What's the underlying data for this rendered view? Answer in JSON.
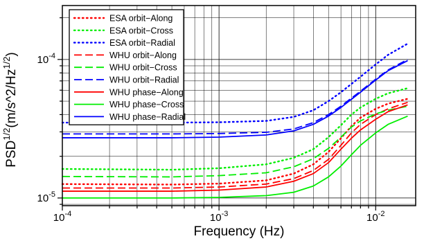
{
  "chart_data": {
    "type": "line",
    "xlabel": "Frequency (Hz)",
    "ylabel": "PSD^{1/2}(m/s^2/Hz^{1/2})",
    "x_scale": "log",
    "y_scale": "log",
    "xlim": [
      0.0001,
      0.018
    ],
    "ylim": [
      8.8e-06,
      0.000245
    ],
    "grid": true,
    "legend_position": "top-left",
    "x_ticks": [
      {
        "value": 0.0001,
        "base": "10",
        "exp": "-4"
      },
      {
        "value": 0.001,
        "base": "10",
        "exp": "-3"
      },
      {
        "value": 0.01,
        "base": "10",
        "exp": "-2"
      }
    ],
    "y_ticks": [
      {
        "value": 1e-05,
        "base": "10",
        "exp": "-5"
      },
      {
        "value": 0.0001,
        "base": "10",
        "exp": "-4"
      }
    ],
    "series": [
      {
        "name": "ESA orbit−Along",
        "color": "#ff0000",
        "style": "dotted",
        "x": [
          0.0001,
          0.0005,
          0.001,
          0.002,
          0.003,
          0.004,
          0.005,
          0.006,
          0.007,
          0.008,
          0.01,
          0.012,
          0.016
        ],
        "y": [
          1.26e-05,
          1.25e-05,
          1.27e-05,
          1.34e-05,
          1.5e-05,
          1.75e-05,
          2.15e-05,
          2.7e-05,
          3.3e-05,
          3.8e-05,
          4.4e-05,
          4.8e-05,
          5.2e-05
        ]
      },
      {
        "name": "ESA orbit−Cross",
        "color": "#00ee00",
        "style": "dotted",
        "x": [
          0.0001,
          0.0005,
          0.001,
          0.002,
          0.003,
          0.004,
          0.005,
          0.006,
          0.007,
          0.008,
          0.01,
          0.012,
          0.016
        ],
        "y": [
          1.62e-05,
          1.6e-05,
          1.64e-05,
          1.75e-05,
          1.95e-05,
          2.25e-05,
          2.75e-05,
          3.35e-05,
          4e-05,
          4.5e-05,
          5.2e-05,
          5.7e-05,
          6.2e-05
        ]
      },
      {
        "name": "ESA orbit−Radial",
        "color": "#0000ff",
        "style": "dotted",
        "x": [
          0.0001,
          0.0005,
          0.001,
          0.002,
          0.003,
          0.004,
          0.005,
          0.006,
          0.008,
          0.01,
          0.012,
          0.016
        ],
        "y": [
          3.5e-05,
          3.5e-05,
          3.52e-05,
          3.6e-05,
          3.85e-05,
          4.3e-05,
          5e-05,
          5.8e-05,
          7.5e-05,
          9.2e-05,
          0.000108,
          0.00013
        ]
      },
      {
        "name": "WHU orbit−Along",
        "color": "#ff0000",
        "style": "dashed",
        "x": [
          0.0001,
          0.0005,
          0.001,
          0.002,
          0.003,
          0.004,
          0.005,
          0.006,
          0.007,
          0.008,
          0.01,
          0.012,
          0.016
        ],
        "y": [
          1.18e-05,
          1.18e-05,
          1.2e-05,
          1.26e-05,
          1.38e-05,
          1.58e-05,
          1.9e-05,
          2.4e-05,
          2.95e-05,
          3.4e-05,
          4e-05,
          4.4e-05,
          4.9e-05
        ]
      },
      {
        "name": "WHU orbit−Cross",
        "color": "#00ee00",
        "style": "dashed",
        "x": [
          0.0001,
          0.0005,
          0.001,
          0.002,
          0.003,
          0.004,
          0.005,
          0.006,
          0.007,
          0.008,
          0.01,
          0.012,
          0.016
        ],
        "y": [
          1.43e-05,
          1.42e-05,
          1.45e-05,
          1.52e-05,
          1.68e-05,
          1.92e-05,
          2.28e-05,
          2.75e-05,
          3.25e-05,
          3.6e-05,
          4.05e-05,
          4.3e-05,
          4.6e-05
        ]
      },
      {
        "name": "WHU orbit−Radial",
        "color": "#0000ff",
        "style": "dashed",
        "x": [
          0.0001,
          0.0005,
          0.001,
          0.002,
          0.003,
          0.004,
          0.005,
          0.006,
          0.008,
          0.01,
          0.012,
          0.016
        ],
        "y": [
          2.9e-05,
          2.9e-05,
          2.92e-05,
          2.98e-05,
          3.15e-05,
          3.5e-05,
          4e-05,
          4.6e-05,
          5.9e-05,
          7.2e-05,
          8.4e-05,
          0.0001
        ]
      },
      {
        "name": "WHU phase−Along",
        "color": "#ff0000",
        "style": "solid",
        "x": [
          0.0001,
          0.0005,
          0.001,
          0.002,
          0.003,
          0.004,
          0.005,
          0.006,
          0.007,
          0.008,
          0.01,
          0.012,
          0.016
        ],
        "y": [
          1.12e-05,
          1.12e-05,
          1.14e-05,
          1.2e-05,
          1.32e-05,
          1.5e-05,
          1.8e-05,
          2.25e-05,
          2.7e-05,
          3.1e-05,
          3.7e-05,
          4.2e-05,
          4.7e-05
        ]
      },
      {
        "name": "WHU phase−Cross",
        "color": "#00ee00",
        "style": "solid",
        "x": [
          0.0001,
          0.0005,
          0.001,
          0.002,
          0.003,
          0.004,
          0.005,
          0.006,
          0.007,
          0.008,
          0.01,
          0.012,
          0.016
        ],
        "y": [
          1e-05,
          1e-05,
          1.01e-05,
          1.04e-05,
          1.1e-05,
          1.22e-05,
          1.42e-05,
          1.7e-05,
          2.05e-05,
          2.4e-05,
          2.95e-05,
          3.4e-05,
          3.9e-05
        ]
      },
      {
        "name": "WHU phase−Radial",
        "color": "#0000ff",
        "style": "solid",
        "x": [
          0.0001,
          0.0005,
          0.001,
          0.002,
          0.003,
          0.004,
          0.005,
          0.006,
          0.008,
          0.01,
          0.012,
          0.016
        ],
        "y": [
          2.72e-05,
          2.72e-05,
          2.75e-05,
          2.85e-05,
          3.05e-05,
          3.4e-05,
          3.9e-05,
          4.5e-05,
          5.8e-05,
          7.1e-05,
          8.3e-05,
          9.8e-05
        ]
      }
    ]
  }
}
